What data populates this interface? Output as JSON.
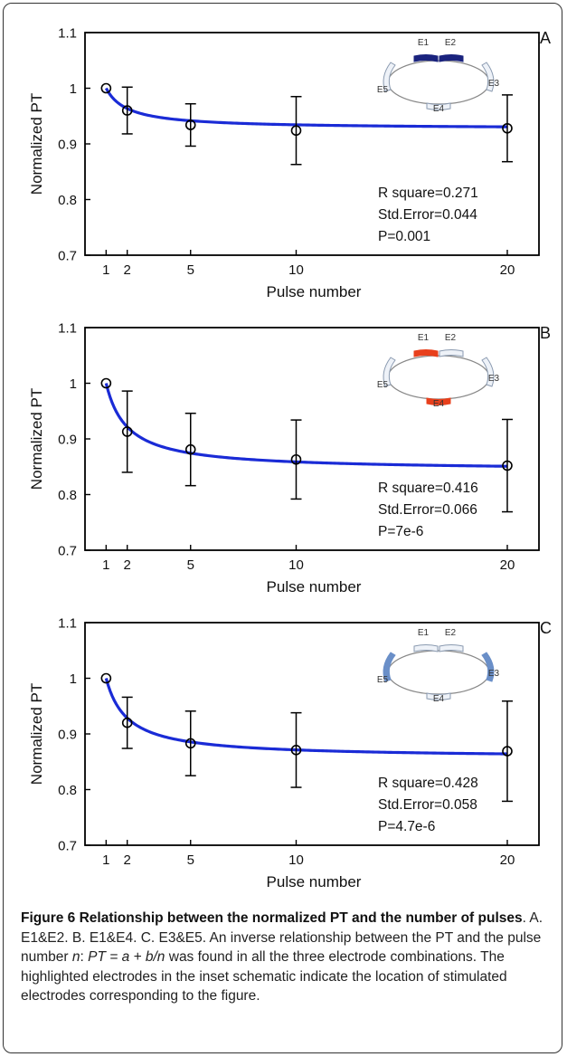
{
  "chart_data": [
    {
      "type": "line",
      "panel_label": "A",
      "xlabel": "Pulse number",
      "ylabel": "Normalized PT",
      "xticks": [
        1,
        2,
        5,
        10,
        20
      ],
      "yticks": [
        "0.7",
        "0.8",
        "0.9",
        "1",
        "1.1"
      ],
      "xlim": [
        0,
        21.5
      ],
      "ylim": [
        0.7,
        1.1
      ],
      "points": {
        "x": [
          1,
          2,
          5,
          10,
          20
        ],
        "y": [
          1.0,
          0.96,
          0.934,
          0.924,
          0.928
        ],
        "err": [
          0,
          0.042,
          0.038,
          0.061,
          0.06
        ]
      },
      "fit": {
        "a": 0.927,
        "b": 0.073,
        "color": "#1a2bd6"
      },
      "stats": [
        "R square=0.271",
        "Std.Error=0.044",
        "P=0.001"
      ],
      "electrodes": {
        "labels": [
          "E1",
          "E2",
          "E3",
          "E4",
          "E5"
        ],
        "highlighted": [
          "E1",
          "E2"
        ],
        "highlight_color": "#1a237e"
      }
    },
    {
      "type": "line",
      "panel_label": "B",
      "xlabel": "Pulse number",
      "ylabel": "Normalized PT",
      "xticks": [
        1,
        2,
        5,
        10,
        20
      ],
      "yticks": [
        "0.7",
        "0.8",
        "0.9",
        "1",
        "1.1"
      ],
      "xlim": [
        0,
        21.5
      ],
      "ylim": [
        0.7,
        1.1
      ],
      "points": {
        "x": [
          1,
          2,
          5,
          10,
          20
        ],
        "y": [
          1.0,
          0.913,
          0.881,
          0.863,
          0.852
        ],
        "err": [
          0,
          0.073,
          0.065,
          0.071,
          0.083
        ]
      },
      "fit": {
        "a": 0.843,
        "b": 0.157,
        "color": "#1a2bd6"
      },
      "stats": [
        "R square=0.416",
        "Std.Error=0.066",
        "P=7e-6"
      ],
      "electrodes": {
        "labels": [
          "E1",
          "E2",
          "E3",
          "E4",
          "E5"
        ],
        "highlighted": [
          "E1",
          "E4"
        ],
        "highlight_color": "#e8401c"
      }
    },
    {
      "type": "line",
      "panel_label": "C",
      "xlabel": "Pulse number",
      "ylabel": "Normalized PT",
      "xticks": [
        1,
        2,
        5,
        10,
        20
      ],
      "yticks": [
        "0.7",
        "0.8",
        "0.9",
        "1",
        "1.1"
      ],
      "xlim": [
        0,
        21.5
      ],
      "ylim": [
        0.7,
        1.1
      ],
      "points": {
        "x": [
          1,
          2,
          5,
          10,
          20
        ],
        "y": [
          1.0,
          0.92,
          0.883,
          0.871,
          0.869
        ],
        "err": [
          0,
          0.046,
          0.058,
          0.067,
          0.09
        ]
      },
      "fit": {
        "a": 0.857,
        "b": 0.143,
        "color": "#1a2bd6"
      },
      "stats": [
        "R square=0.428",
        "Std.Error=0.058",
        "P=4.7e-6"
      ],
      "electrodes": {
        "labels": [
          "E1",
          "E2",
          "E3",
          "E4",
          "E5"
        ],
        "highlighted": [
          "E3",
          "E5"
        ],
        "highlight_color": "#6a8fc8"
      }
    }
  ],
  "caption": {
    "bold": "Figure 6 Relationship between the normalized PT and the number of pulses",
    "text_1": ". A. E1&E2. B. E1&E4. C. E3&E5. An inverse relationship between the PT and the pulse number ",
    "n": "n",
    "text_2": ": ",
    "formula": "PT = a + b/n",
    "text_3": " was found in all the three electrode combinations. The highlighted electrodes in the inset schematic indicate the location of stimulated electrodes corresponding to the figure."
  }
}
